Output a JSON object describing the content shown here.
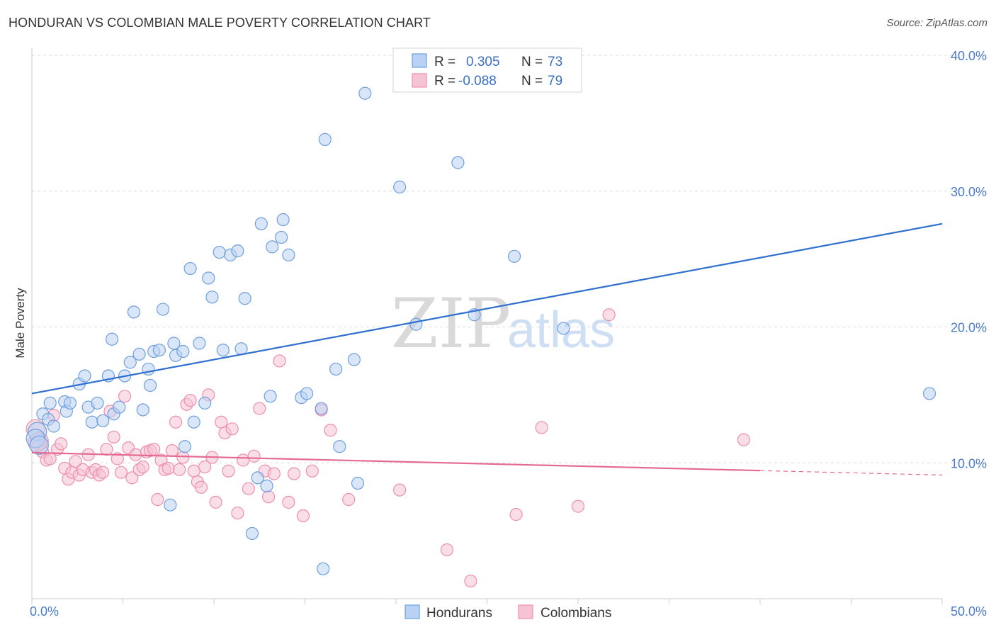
{
  "title": "HONDURAN VS COLOMBIAN MALE POVERTY CORRELATION CHART",
  "source": "Source: ZipAtlas.com",
  "watermark": {
    "zip": "ZIP",
    "atlas": "atlas"
  },
  "colors": {
    "blue": "#6f9fde",
    "blue_fill": "#b9d1f2",
    "blue_line": "#2f6fcf",
    "pink": "#ee8fad",
    "pink_fill": "#f6c3d4",
    "pink_line": "#e56a92",
    "tick_text": "#4a7cc9",
    "grid": "#dddddd"
  },
  "chart_data": {
    "type": "scatter",
    "xlabel": "",
    "ylabel": "Male Poverty",
    "xlim": [
      0,
      50
    ],
    "ylim": [
      0,
      40
    ],
    "x_ticks_labeled": [
      {
        "value": 0,
        "label": "0.0%"
      },
      {
        "value": 50,
        "label": "50.0%"
      }
    ],
    "y_ticks": [
      {
        "value": 10,
        "label": "10.0%"
      },
      {
        "value": 20,
        "label": "20.0%"
      },
      {
        "value": 30,
        "label": "30.0%"
      },
      {
        "value": 40,
        "label": "40.0%"
      }
    ],
    "legend_stats": [
      {
        "r_label": "R =",
        "r_value": "0.305",
        "n_label": "N =",
        "n_value": "73"
      },
      {
        "r_label": "R =",
        "r_value": "-0.088",
        "n_label": "N =",
        "n_value": "79"
      }
    ],
    "series": [
      {
        "name": "Hondurans",
        "trend": {
          "x": [
            0,
            50
          ],
          "y": [
            15.1,
            27.6
          ],
          "solid_to": 50
        },
        "points": [
          [
            0.3,
            12.3
          ],
          [
            0.6,
            13.6
          ],
          [
            0.9,
            13.2
          ],
          [
            1.0,
            14.4
          ],
          [
            1.2,
            12.7
          ],
          [
            1.8,
            14.5
          ],
          [
            1.9,
            13.8
          ],
          [
            2.6,
            15.8
          ],
          [
            2.9,
            16.4
          ],
          [
            3.1,
            14.1
          ],
          [
            3.3,
            13.0
          ],
          [
            3.6,
            14.4
          ],
          [
            3.9,
            13.1
          ],
          [
            4.2,
            16.4
          ],
          [
            4.4,
            19.1
          ],
          [
            4.5,
            13.6
          ],
          [
            4.8,
            14.1
          ],
          [
            5.1,
            16.4
          ],
          [
            5.4,
            17.4
          ],
          [
            5.6,
            21.1
          ],
          [
            5.9,
            18.0
          ],
          [
            6.1,
            13.9
          ],
          [
            6.4,
            16.9
          ],
          [
            6.5,
            15.7
          ],
          [
            6.7,
            18.2
          ],
          [
            7.0,
            18.3
          ],
          [
            7.2,
            21.3
          ],
          [
            7.6,
            6.9
          ],
          [
            7.8,
            18.8
          ],
          [
            7.9,
            17.9
          ],
          [
            8.3,
            18.2
          ],
          [
            8.4,
            11.2
          ],
          [
            8.7,
            24.3
          ],
          [
            8.9,
            13.0
          ],
          [
            9.2,
            18.8
          ],
          [
            9.5,
            14.4
          ],
          [
            9.7,
            23.6
          ],
          [
            9.9,
            22.2
          ],
          [
            10.3,
            25.5
          ],
          [
            10.5,
            18.3
          ],
          [
            10.9,
            25.3
          ],
          [
            11.3,
            25.6
          ],
          [
            11.5,
            18.4
          ],
          [
            11.7,
            22.1
          ],
          [
            12.1,
            4.8
          ],
          [
            12.4,
            8.9
          ],
          [
            12.6,
            27.6
          ],
          [
            12.9,
            8.3
          ],
          [
            13.1,
            14.9
          ],
          [
            13.2,
            25.9
          ],
          [
            13.7,
            26.6
          ],
          [
            13.8,
            27.9
          ],
          [
            14.1,
            25.3
          ],
          [
            14.8,
            14.8
          ],
          [
            15.1,
            15.1
          ],
          [
            15.9,
            14.0
          ],
          [
            16.0,
            2.2
          ],
          [
            16.1,
            33.8
          ],
          [
            16.7,
            16.9
          ],
          [
            16.9,
            11.2
          ],
          [
            17.7,
            17.6
          ],
          [
            17.9,
            8.5
          ],
          [
            18.3,
            37.2
          ],
          [
            20.2,
            30.3
          ],
          [
            21.1,
            20.2
          ],
          [
            23.4,
            32.1
          ],
          [
            24.3,
            20.9
          ],
          [
            26.5,
            25.2
          ],
          [
            29.2,
            19.9
          ],
          [
            49.3,
            15.1
          ],
          [
            0.2,
            11.8
          ],
          [
            0.4,
            11.3
          ],
          [
            2.1,
            14.4
          ]
        ]
      },
      {
        "name": "Colombians",
        "trend": {
          "x": [
            0,
            50
          ],
          "y": [
            10.75,
            9.1
          ],
          "solid_to": 40.0
        },
        "points": [
          [
            0.2,
            12.5
          ],
          [
            0.4,
            11.6
          ],
          [
            0.6,
            10.8
          ],
          [
            0.8,
            10.2
          ],
          [
            1.0,
            10.3
          ],
          [
            1.2,
            13.5
          ],
          [
            1.4,
            11.0
          ],
          [
            1.6,
            11.4
          ],
          [
            1.8,
            9.6
          ],
          [
            2.0,
            8.8
          ],
          [
            2.2,
            9.3
          ],
          [
            2.4,
            10.1
          ],
          [
            2.6,
            9.1
          ],
          [
            2.8,
            9.5
          ],
          [
            3.1,
            10.6
          ],
          [
            3.3,
            9.3
          ],
          [
            3.5,
            9.5
          ],
          [
            3.7,
            9.1
          ],
          [
            3.9,
            9.3
          ],
          [
            4.1,
            11.0
          ],
          [
            4.3,
            13.8
          ],
          [
            4.5,
            11.9
          ],
          [
            4.7,
            10.3
          ],
          [
            4.9,
            9.3
          ],
          [
            5.1,
            14.9
          ],
          [
            5.3,
            11.1
          ],
          [
            5.5,
            8.9
          ],
          [
            5.7,
            10.6
          ],
          [
            5.9,
            9.5
          ],
          [
            6.1,
            9.7
          ],
          [
            6.3,
            10.8
          ],
          [
            6.5,
            10.9
          ],
          [
            6.7,
            11.0
          ],
          [
            6.9,
            7.3
          ],
          [
            7.1,
            10.2
          ],
          [
            7.3,
            9.5
          ],
          [
            7.5,
            9.6
          ],
          [
            7.7,
            10.9
          ],
          [
            7.9,
            13.0
          ],
          [
            8.1,
            9.5
          ],
          [
            8.3,
            10.4
          ],
          [
            8.5,
            14.3
          ],
          [
            8.7,
            14.6
          ],
          [
            8.9,
            9.4
          ],
          [
            9.1,
            8.6
          ],
          [
            9.3,
            8.2
          ],
          [
            9.5,
            9.7
          ],
          [
            9.7,
            15.0
          ],
          [
            9.9,
            10.4
          ],
          [
            10.1,
            7.1
          ],
          [
            10.4,
            13.0
          ],
          [
            10.6,
            12.2
          ],
          [
            10.8,
            9.4
          ],
          [
            11.0,
            12.5
          ],
          [
            11.3,
            6.3
          ],
          [
            11.6,
            10.2
          ],
          [
            11.9,
            8.1
          ],
          [
            12.2,
            10.5
          ],
          [
            12.5,
            14.0
          ],
          [
            12.8,
            9.4
          ],
          [
            13.0,
            7.5
          ],
          [
            13.3,
            9.2
          ],
          [
            13.6,
            17.5
          ],
          [
            14.1,
            7.1
          ],
          [
            14.4,
            9.2
          ],
          [
            14.9,
            6.1
          ],
          [
            15.4,
            9.4
          ],
          [
            15.9,
            13.9
          ],
          [
            16.4,
            12.4
          ],
          [
            17.4,
            7.3
          ],
          [
            20.2,
            8.0
          ],
          [
            22.8,
            3.6
          ],
          [
            24.1,
            1.3
          ],
          [
            26.6,
            6.2
          ],
          [
            28.0,
            12.6
          ],
          [
            30.0,
            6.8
          ],
          [
            31.7,
            20.9
          ],
          [
            39.1,
            11.7
          ],
          [
            0.3,
            11.5
          ]
        ]
      }
    ],
    "legend_bottom": [
      "Hondurans",
      "Colombians"
    ]
  }
}
